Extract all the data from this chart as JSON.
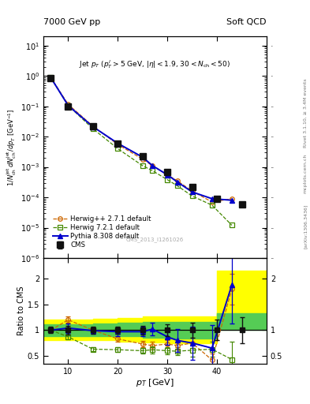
{
  "title_left": "7000 GeV pp",
  "title_right": "Soft QCD",
  "xlabel": "p_{T} [GeV]",
  "ylabel_main": "1/N_{ch}jet dN_{ch}jet/dp_{T}  [GeV]^{-1}",
  "ylabel_ratio": "Ratio to CMS",
  "cms_id": "CMS_2013_I1261026",
  "rivet_text": "Rivet 3.1.10, ≥ 3.4M events",
  "arxiv_text": "[arXiv:1306.3436]",
  "mcplots_text": "mcplots.cern.ch",
  "xlim": [
    5,
    50
  ],
  "ylim_main": [
    1e-06,
    20
  ],
  "ylim_ratio": [
    0.35,
    2.4
  ],
  "cms_x": [
    6.5,
    10,
    15,
    20,
    25,
    30,
    35,
    40,
    45
  ],
  "cms_y": [
    0.85,
    0.1,
    0.022,
    0.006,
    0.0022,
    0.0007,
    0.00022,
    9e-05,
    6e-05
  ],
  "cms_yerr_lo": [
    0.04,
    0.006,
    0.0015,
    0.0004,
    0.00015,
    5e-05,
    1.5e-05,
    8e-06,
    8e-06
  ],
  "cms_yerr_hi": [
    0.04,
    0.006,
    0.0015,
    0.0004,
    0.00015,
    5e-05,
    1.5e-05,
    8e-06,
    8e-06
  ],
  "hppdef_x": [
    6.5,
    10,
    15,
    20,
    25,
    27,
    30,
    32,
    35,
    39,
    43
  ],
  "hppdef_y": [
    0.87,
    0.115,
    0.022,
    0.0055,
    0.0018,
    0.0011,
    0.00055,
    0.00035,
    0.00016,
    7e-05,
    9e-05
  ],
  "h721def_x": [
    6.5,
    10,
    15,
    20,
    25,
    27,
    30,
    32,
    35,
    39,
    43
  ],
  "h721def_y": [
    0.87,
    0.105,
    0.018,
    0.004,
    0.0011,
    0.00075,
    0.00038,
    0.00024,
    0.00011,
    5.5e-05,
    1.2e-05
  ],
  "py8def_x": [
    6.5,
    10,
    15,
    20,
    25,
    27,
    30,
    32,
    35,
    39,
    43
  ],
  "py8def_y": [
    0.87,
    0.105,
    0.021,
    0.006,
    0.0021,
    0.0011,
    0.00055,
    0.00032,
    0.00015,
    9e-05,
    8e-05
  ],
  "ratio_hpp_x": [
    6.5,
    10,
    15,
    20,
    25,
    27,
    30,
    32,
    35,
    39,
    43
  ],
  "ratio_hpp_y": [
    1.0,
    1.2,
    1.0,
    0.83,
    0.73,
    0.7,
    0.73,
    0.7,
    0.75,
    0.42,
    1.8
  ],
  "ratio_hpp_yerr": [
    0.03,
    0.06,
    0.05,
    0.05,
    0.06,
    0.07,
    0.07,
    0.08,
    0.1,
    0.12,
    0.3
  ],
  "ratio_h721_x": [
    6.5,
    10,
    15,
    20,
    25,
    27,
    30,
    32,
    35,
    39,
    43
  ],
  "ratio_h721_y": [
    1.0,
    0.87,
    0.63,
    0.62,
    0.6,
    0.62,
    0.6,
    0.59,
    0.61,
    0.63,
    0.43
  ],
  "ratio_h721_yerr": [
    0.03,
    0.05,
    0.04,
    0.05,
    0.06,
    0.07,
    0.07,
    0.08,
    0.12,
    0.15,
    0.35
  ],
  "ratio_py8_x": [
    6.5,
    10,
    15,
    20,
    25,
    27,
    30,
    32,
    35,
    39,
    43
  ],
  "ratio_py8_y": [
    1.0,
    1.04,
    0.99,
    0.97,
    0.97,
    1.02,
    0.87,
    0.8,
    0.75,
    0.65,
    1.88
  ],
  "ratio_py8_yerr": [
    0.04,
    0.09,
    0.06,
    0.08,
    0.09,
    0.12,
    0.16,
    0.22,
    0.32,
    0.45,
    0.75
  ],
  "ratio_cms_x": [
    6.5,
    10,
    15,
    20,
    25,
    30,
    35,
    40,
    45
  ],
  "ratio_cms_yerr": [
    0.06,
    0.08,
    0.07,
    0.07,
    0.09,
    0.11,
    0.14,
    0.2,
    0.25
  ],
  "band_yellow_edges": [
    5,
    10,
    15,
    20,
    25,
    30,
    35,
    40,
    44,
    50
  ],
  "band_yellow_lo": [
    0.8,
    0.8,
    0.8,
    0.78,
    0.76,
    0.74,
    0.74,
    1.35,
    1.35,
    1.35
  ],
  "band_yellow_hi": [
    1.2,
    1.2,
    1.22,
    1.24,
    1.26,
    1.26,
    1.26,
    2.15,
    2.15,
    2.15
  ],
  "band_green_edges": [
    5,
    10,
    15,
    20,
    25,
    30,
    35,
    40,
    44,
    50
  ],
  "band_green_lo": [
    0.89,
    0.89,
    0.89,
    0.88,
    0.86,
    0.84,
    0.84,
    1.0,
    1.0,
    1.0
  ],
  "band_green_hi": [
    1.11,
    1.11,
    1.13,
    1.14,
    1.16,
    1.16,
    1.16,
    1.32,
    1.32,
    1.32
  ],
  "color_cms": "#111111",
  "color_hpp": "#cc6600",
  "color_h721": "#448800",
  "color_py8": "#0000cc",
  "color_band_yellow": "#ffff00",
  "color_band_green": "#55cc55",
  "bg_color": "#ffffff"
}
